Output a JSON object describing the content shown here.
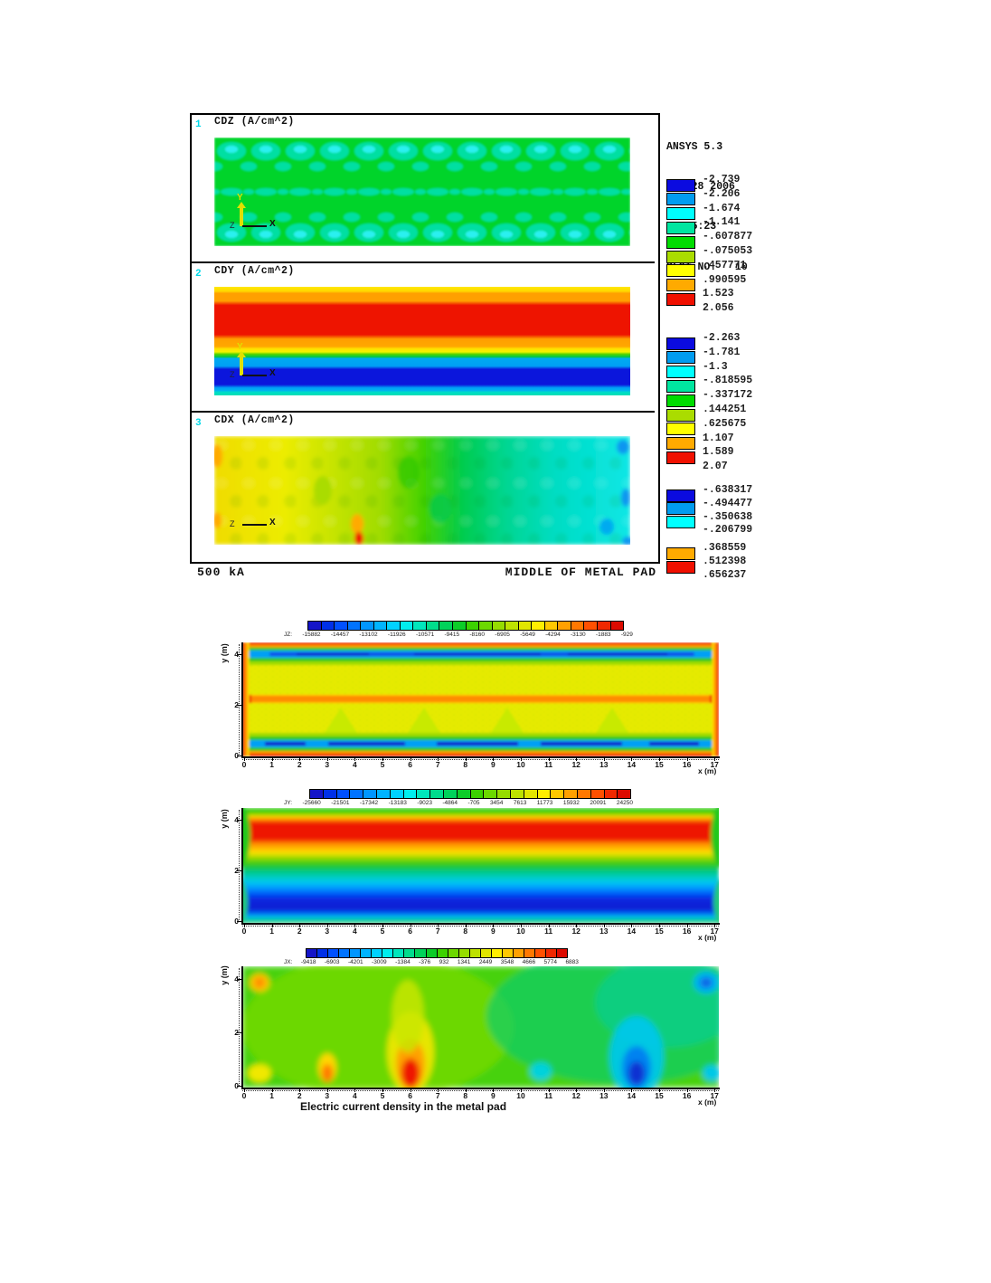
{
  "ansys_figure": {
    "info": {
      "app": "ANSYS 5.3",
      "date": "FEB 28 2006",
      "time": "17:05:23",
      "plot_no": "PLOT NO.   10"
    },
    "plots": [
      {
        "num": "1",
        "title": "CDZ (A/cm^2)"
      },
      {
        "num": "2",
        "title": "CDY (A/cm^2)"
      },
      {
        "num": "3",
        "title": "CDX (A/cm^2)"
      }
    ],
    "triad": {
      "x_label": "X",
      "y_label": "Y",
      "z_label": "Z"
    },
    "legend_colors": [
      "#0b0be0",
      "#009cf0",
      "#00ffff",
      "#00e6a0",
      "#00dc00",
      "#aadc00",
      "#ffff00",
      "#ffaa00",
      "#f01000"
    ],
    "legends": [
      {
        "values": [
          "-2.739",
          "-2.206",
          "-1.674",
          "-1.141",
          "-.607877",
          "-.075053",
          ".457771",
          ".990595",
          "1.523",
          "2.056"
        ]
      },
      {
        "values": [
          "-2.263",
          "-1.781",
          "-1.3",
          "-.818595",
          "-.337172",
          ".144251",
          ".625675",
          "1.107",
          "1.589",
          "2.07"
        ]
      },
      {
        "values": [
          "-.638317",
          "-.494477",
          "-.350638",
          "-.206799",
          ".368559",
          ".512398",
          ".656237"
        ],
        "colors": [
          "#0b0be0",
          "#009cf0",
          "#00ffff",
          null,
          "#ffaa00",
          "#f01000"
        ]
      }
    ],
    "footer_left": "500 kA",
    "footer_right": "MIDDLE OF METAL PAD"
  },
  "current_density_figure": {
    "caption": "Electric current density in the metal pad",
    "xlabel": "x (m)",
    "ylabel": "y (m)",
    "x_ticks": [
      "0",
      "1",
      "2",
      "3",
      "4",
      "5",
      "6",
      "7",
      "8",
      "9",
      "10",
      "11",
      "12",
      "13",
      "14",
      "15",
      "16",
      "17"
    ],
    "y_ticks": [
      "4",
      "2",
      "0"
    ],
    "colorbar_colors": [
      "#1414c8",
      "#0030e8",
      "#0050ff",
      "#0073ff",
      "#0096ff",
      "#00b4ff",
      "#00d2ff",
      "#00eeee",
      "#00e6bc",
      "#00dc8c",
      "#00d25a",
      "#0ccc28",
      "#3cd200",
      "#6cd800",
      "#96dc00",
      "#bee200",
      "#e2e600",
      "#ffee00",
      "#ffc800",
      "#ffa000",
      "#ff7800",
      "#ff5000",
      "#f02800",
      "#dc0a00"
    ],
    "plots": [
      {
        "label_prefix": "JZ:",
        "labels": [
          "-15882",
          "-14457",
          "-13102",
          "-11926",
          "-10571",
          "-9415",
          "-8160",
          "-6905",
          "-5649",
          "-4294",
          "-3130",
          "-1883",
          "-929"
        ]
      },
      {
        "label_prefix": "JY:",
        "labels": [
          "-25660",
          "-21501",
          "-17342",
          "-13183",
          "-9023",
          "-4864",
          "-705",
          "3454",
          "7613",
          "11773",
          "15932",
          "20091",
          "24250"
        ]
      },
      {
        "label_prefix": "JX:",
        "labels": [
          "-9418",
          "-6903",
          "-4201",
          "-3009",
          "-1384",
          "-376",
          "932",
          "1341",
          "2449",
          "3548",
          "4666",
          "5774",
          "6883"
        ]
      }
    ]
  },
  "chart_data": [
    {
      "type": "heatmap",
      "panel": "ANSYS top",
      "title": "CDZ (A/cm^2)",
      "plot_no": 1,
      "units": "A/cm^2",
      "legend_levels": [
        -2.739,
        -2.206,
        -1.674,
        -1.141,
        -0.607877,
        -0.075053,
        0.457771,
        0.990595,
        1.523,
        2.056
      ],
      "description": "Vertical current density in middle of metal pad: mostly green (-0.61 to -0.08) with periodic turquoise/cyan patches in rows near top, middle and bottom"
    },
    {
      "type": "heatmap",
      "panel": "ANSYS top",
      "title": "CDY (A/cm^2)",
      "plot_no": 2,
      "units": "A/cm^2",
      "legend_levels": [
        -2.263,
        -1.781,
        -1.3,
        -0.818595,
        -0.337172,
        0.144251,
        0.625675,
        1.107,
        1.589,
        2.07
      ],
      "description": "Horizontal bands: yellow/orange/red (positive up to ~2.07) in upper half, sky-blue/dark-blue (negative to ~-2.26) in lower half, thin green transition at mid-height"
    },
    {
      "type": "heatmap",
      "panel": "ANSYS top",
      "title": "CDX (A/cm^2)",
      "plot_no": 3,
      "units": "A/cm^2",
      "legend_levels": [
        -0.638317,
        -0.494477,
        -0.350638,
        -0.206799,
        0.368559,
        0.512398,
        0.656237
      ],
      "description": "Mottled gradient from yellow/orange (positive ~0.5-0.65) at the left to turquoise/cyan (negative) at the right, small red spot near bottom-centre-left, blue spots at right edge"
    },
    {
      "type": "heatmap",
      "panel": "metal pad",
      "series": "JZ",
      "xlabel": "x (m)",
      "ylabel": "y (m)",
      "xlim": [
        0,
        17
      ],
      "ylim": [
        0,
        4.5
      ],
      "legend_levels": [
        -15882,
        -14457,
        -13102,
        -11926,
        -10571,
        -9415,
        -8160,
        -6905,
        -5649,
        -4294,
        -3130,
        -1883,
        -929
      ],
      "description": "Mostly yellow field with red/orange borders, dark-blue horizontal stripes near y=4 and y=0.5, orange stripe at y=2.2, light-green plumes at x=3.5, 6.5, 9.5, 13.5"
    },
    {
      "type": "heatmap",
      "panel": "metal pad",
      "series": "JY",
      "xlabel": "x (m)",
      "ylabel": "y (m)",
      "xlim": [
        0,
        17
      ],
      "ylim": [
        0,
        4.5
      ],
      "legend_levels": [
        -25660,
        -21501,
        -17342,
        -13183,
        -9023,
        -4864,
        -705,
        3454,
        7613,
        11773,
        15932,
        20091,
        24250
      ],
      "description": "Smooth horizontal bands: red maximum band at y=3.5, green at top edge and mid-height, dark-blue minimum band at y=0.9, green at bottom edge"
    },
    {
      "type": "heatmap",
      "panel": "metal pad",
      "series": "JX",
      "xlabel": "x (m)",
      "ylabel": "y (m)",
      "xlim": [
        0,
        17
      ],
      "ylim": [
        0,
        4.5
      ],
      "legend_levels": [
        -9418,
        -6903,
        -4201,
        -3009,
        -1384,
        -376,
        932,
        1341,
        2449,
        3548,
        4666,
        5774,
        6883
      ],
      "description": "Green field: orange spot top-left, blue spot top-right, red/orange maxima near bottom at x=3 and x=6, large blue minimum near bottom at x=14, cyan patches on the right half"
    }
  ]
}
